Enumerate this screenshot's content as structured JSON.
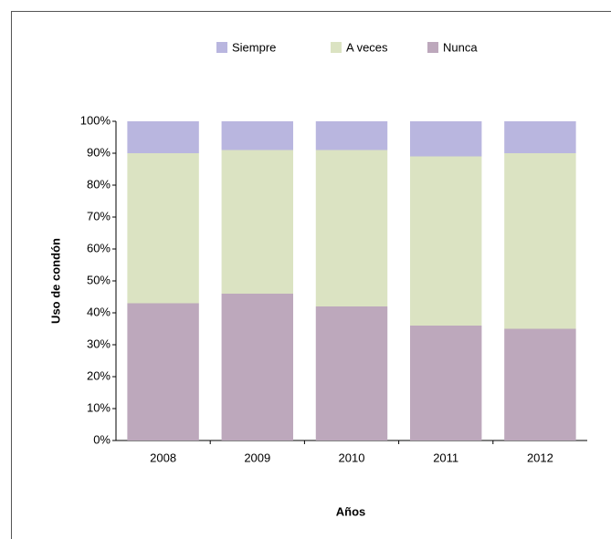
{
  "chart_data": {
    "type": "stacked_bar_percent",
    "categories": [
      "2008",
      "2009",
      "2010",
      "2011",
      "2012"
    ],
    "series": [
      {
        "name": "Siempre",
        "color": "#b9b6df",
        "values": [
          10,
          9,
          9,
          11,
          10
        ]
      },
      {
        "name": "A veces",
        "color": "#dbe3c2",
        "values": [
          47,
          45,
          49,
          53,
          55
        ]
      },
      {
        "name": "Nunca",
        "color": "#bda8bc",
        "values": [
          43,
          46,
          42,
          36,
          35
        ]
      }
    ],
    "y_label": "Uso de condón",
    "x_label": "Años",
    "ylim": [
      0,
      100
    ],
    "yticks": [
      {
        "value": 0,
        "label": "0%"
      },
      {
        "value": 10,
        "label": "10%"
      },
      {
        "value": 20,
        "label": "20%"
      },
      {
        "value": 30,
        "label": "30%"
      },
      {
        "value": 40,
        "label": "40%"
      },
      {
        "value": 50,
        "label": "50%"
      },
      {
        "value": 60,
        "label": "60%"
      },
      {
        "value": 70,
        "label": "70%"
      },
      {
        "value": 80,
        "label": "80%"
      },
      {
        "value": 90,
        "label": "90%"
      },
      {
        "value": 100,
        "label": "100%"
      }
    ],
    "legend": "top"
  }
}
